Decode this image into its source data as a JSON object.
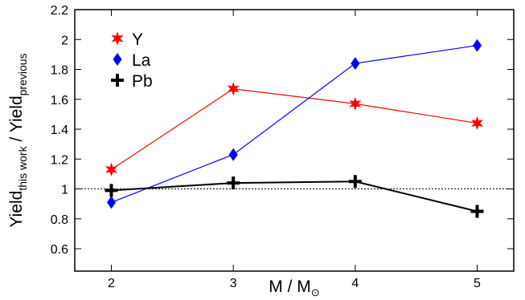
{
  "chart_data": {
    "type": "line",
    "xlabel": "M / M",
    "xlabel_symbol": "⊙",
    "ylabel": {
      "main_1": "Yield",
      "sub_1": "this work",
      "sep": " / Yield",
      "sub_2": "previous"
    },
    "xlim": [
      1.7,
      5.3
    ],
    "ylim": [
      0.45,
      2.2
    ],
    "xticks": [
      2,
      3,
      4,
      5
    ],
    "yticks": [
      0.6,
      0.8,
      1,
      1.2,
      1.4,
      1.6,
      1.8,
      2,
      2.2
    ],
    "reference_line": 1,
    "grid": false,
    "legend_placement": "top-left",
    "x": [
      2,
      3,
      4,
      5
    ],
    "series": [
      {
        "name": "Y",
        "values": [
          1.13,
          1.67,
          1.57,
          1.44
        ],
        "color": "#ff0000",
        "marker": "star"
      },
      {
        "name": "La",
        "values": [
          0.91,
          1.23,
          1.84,
          1.96
        ],
        "color": "#0000ff",
        "marker": "diamond"
      },
      {
        "name": "Pb",
        "values": [
          0.99,
          1.04,
          1.05,
          0.85
        ],
        "color": "#000000",
        "marker": "plus"
      }
    ]
  }
}
